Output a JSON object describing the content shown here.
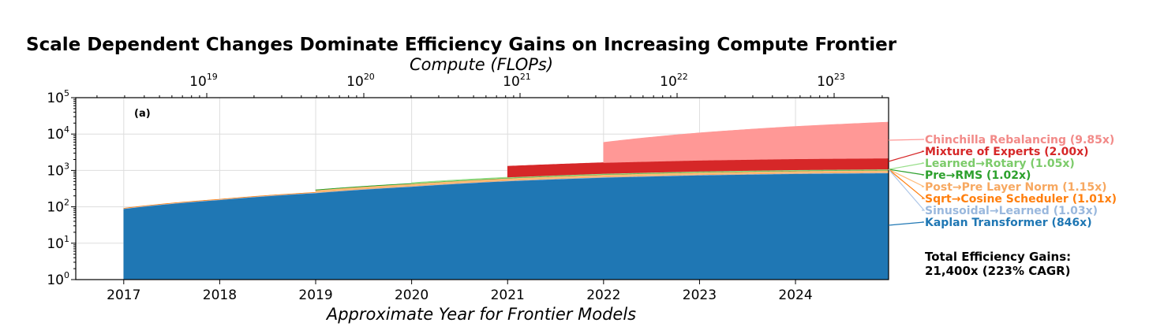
{
  "chart_data": {
    "type": "area",
    "title": "Scale Dependent Changes Dominate Efficiency Gains on Increasing Compute Frontier",
    "xlabel": "Approximate Year for Frontier Models",
    "x2label": "Compute (FLOPs)",
    "panel_label": "(a)",
    "x_ticks": [
      "2017",
      "2018",
      "2019",
      "2020",
      "2021",
      "2022",
      "2023",
      "2024"
    ],
    "xlim": [
      2016.5,
      2024.97
    ],
    "ylim": [
      1,
      100000
    ],
    "y_scale": "log",
    "y_ticks": [
      {
        "base": "10",
        "exp": "0"
      },
      {
        "base": "10",
        "exp": "1"
      },
      {
        "base": "10",
        "exp": "2"
      },
      {
        "base": "10",
        "exp": "3"
      },
      {
        "base": "10",
        "exp": "4"
      },
      {
        "base": "10",
        "exp": "5"
      }
    ],
    "x2_scale": "log",
    "x2_ticks": [
      {
        "base": "10",
        "exp": "19"
      },
      {
        "base": "10",
        "exp": "20"
      },
      {
        "base": "10",
        "exp": "21"
      },
      {
        "base": "10",
        "exp": "22"
      },
      {
        "base": "10",
        "exp": "23"
      }
    ],
    "grid": true,
    "legend_position": "right",
    "series": [
      {
        "name": "Kaplan Transformer (846x)",
        "color": "#1f77b4",
        "start": 2017.0,
        "x": [
          2017.0,
          2018.0,
          2019.0,
          2020.0,
          2021.0,
          2022.0,
          2023.0,
          2024.0,
          2024.97
        ],
        "values": [
          88,
          155,
          240,
          360,
          510,
          640,
          740,
          810,
          846
        ]
      },
      {
        "name": "Sinusoidal→Learned (1.03x)",
        "color": "#aec7e8",
        "start": 2017.0,
        "x": [
          2017.0,
          2024.97
        ],
        "values": [
          1.03,
          1.03
        ]
      },
      {
        "name": "Sqrt→Cosine Scheduler (1.01x)",
        "color": "#ff7f0e",
        "start": 2017.0,
        "x": [
          2017.0,
          2024.97
        ],
        "values": [
          1.01,
          1.01
        ]
      },
      {
        "name": "Post→Pre Layer Norm (1.15x)",
        "color": "#ffbb78",
        "start": 2019.0,
        "x": [
          2019.0,
          2024.97
        ],
        "values": [
          1.15,
          1.15
        ]
      },
      {
        "name": "Pre→RMS (1.02x)",
        "color": "#2ca02c",
        "start": 2019.0,
        "x": [
          2019.0,
          2024.97
        ],
        "values": [
          1.02,
          1.02
        ]
      },
      {
        "name": "Learned→Rotary (1.05x)",
        "color": "#98df8a",
        "start": 2020.0,
        "x": [
          2020.0,
          2024.97
        ],
        "values": [
          1.05,
          1.05
        ]
      },
      {
        "name": "Mixture of Experts (2.00x)",
        "color": "#d62728",
        "start": 2021.0,
        "x": [
          2021.0,
          2024.97
        ],
        "values": [
          2.0,
          2.0
        ]
      },
      {
        "name": "Chinchilla Rebalancing (9.85x)",
        "color": "#ff9896",
        "start": 2022.0,
        "x": [
          2022.0,
          2024.97
        ],
        "values": [
          3.6,
          9.85
        ]
      }
    ],
    "legend_order": [
      "Chinchilla Rebalancing (9.85x)",
      "Mixture of Experts (2.00x)",
      "Learned→Rotary (1.05x)",
      "Pre→RMS (1.02x)",
      "Post→Pre Layer Norm (1.15x)",
      "Sqrt→Cosine Scheduler (1.01x)",
      "Sinusoidal→Learned (1.03x)",
      "Kaplan Transformer (846x)"
    ],
    "total_label": [
      "Total Efficiency Gains:",
      "21,400x (223% CAGR)"
    ]
  }
}
